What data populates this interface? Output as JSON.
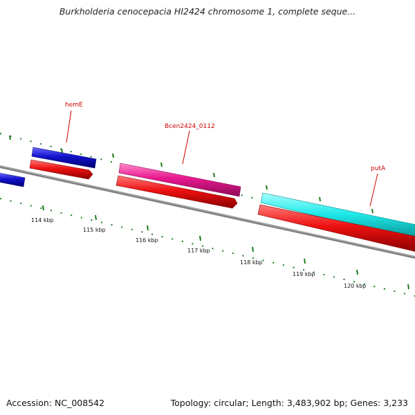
{
  "title": "Burkholderia cenocepacia HI2424 chromosome 1, complete seque...",
  "footer": {
    "accession": "Accession: NC_008542",
    "topology": "Topology: circular; Length: 3,483,902 bp; Genes: 3,233"
  },
  "colors": {
    "backbone": "#808080",
    "tick": "#1a7a1a",
    "label": "#cc0000",
    "cds_forward_blue": "#1111cc",
    "cds_forward_magenta": "#e8188f",
    "cds_forward_cyan": "#1ee8e8",
    "cds_reverse_red": "#ee1111"
  },
  "scale_labels": [
    "114 kbp",
    "115 kbp",
    "116 kbp",
    "117 kbp",
    "118 kbp",
    "119 kbp",
    "120 kbp"
  ],
  "gene_labels": [
    "hemE",
    "Bcen2424_0112",
    "putA"
  ]
}
